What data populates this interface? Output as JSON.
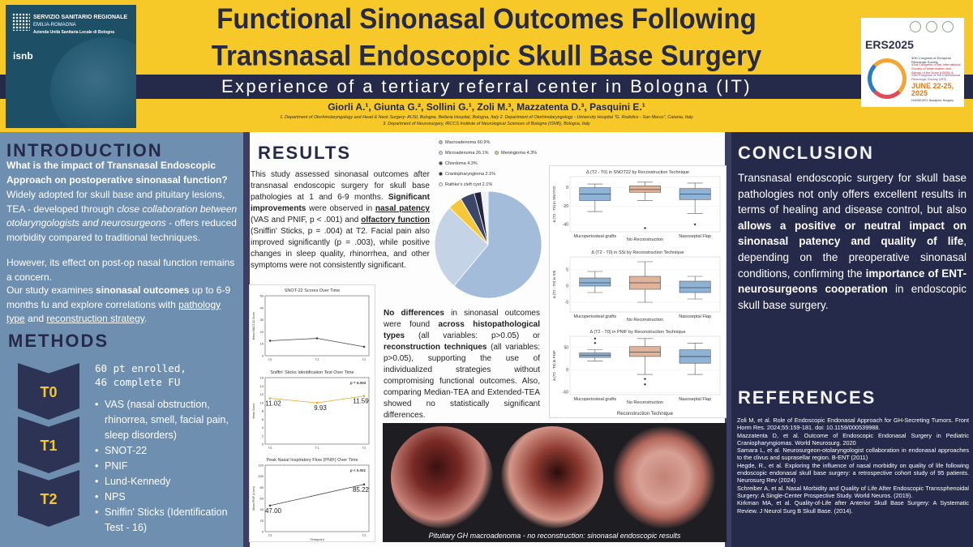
{
  "header": {
    "title_line1": "Functional Sinonasal Outcomes Following",
    "title_line2": "Transnasal Endoscopic Skull Base Surgery",
    "subtitle": "Experience of a tertiary referral center in Bologna (IT)",
    "authors": "Giorli A.¹, Giunta G.², Sollini G.¹, Zoli M.³, Mazzatenta D.³, Pasquini E.¹",
    "aff1": "1. Department of Otorhinolaryngology and Head & Neck Surgery- AUSL Bologna, Bellaria Hospital, Bologna, Italy 2. Department of Otorhinolaryngology - University Hospital \"G. Rodolico - San Marco\", Catania, Italy",
    "aff2": "3. Department of Neurosurgery, IRCCS Institute of Neurological Sciences of Bologna (ISNB), Bologna, Italy",
    "logo_left": {
      "line1": "SERVIZIO SANITARIO REGIONALE",
      "line2": "EMILIA-ROMAGNA",
      "line3": "Azienda Unità Sanitaria Locale di Bologna",
      "line4": "isnb"
    },
    "logo_right": {
      "name": "ERS2025",
      "congress1": "30th Congress of European Rhinologic Society",
      "congress2": "43rd Congress of the International Society of Inflammation and Allergy of the Nose (ISIAN) &",
      "congress3": "25th Congress of the International Rhinologic Society (IRS)",
      "date": "JUNE 22-25, 2025",
      "venue": "HUNGEXPO, Budapest, Hungary"
    }
  },
  "intro": {
    "heading": "INTRODUCTION",
    "question": "What is the impact of Transnasal Endoscopic Approach on postoperative sinonasal function?",
    "p1a": "Widely adopted for skull base and pituitary lesions, TEA - developed through ",
    "p1b": "close collaboration between otolaryngologists and neurosurgeons",
    "p1c": " - offers reduced morbidity compared to traditional techniques.",
    "p2": "However, its effect on post-op nasal function remains a concern.",
    "p3a": "Our study examines ",
    "p3b": "sinonasal outcomes",
    "p3c": " up to 6-9 months fu and explore correlations with ",
    "p3d": "pathology type",
    "p3e": " and ",
    "p3f": "reconstruction strategy",
    "p3g": "."
  },
  "methods": {
    "heading": "METHODS",
    "enrolled1": "60 pt enrolled,",
    "enrolled2": "46 complete FU",
    "timepoints": [
      "T0",
      "T1",
      "T2"
    ],
    "items": [
      "VAS (nasal obstruction, rhinorrea, smell, facial pain, sleep disorders)",
      "SNOT-22",
      "PNIF",
      "Lund-Kennedy",
      "NPS",
      "Sniffin' Sticks (Identification Test - 16)"
    ]
  },
  "results": {
    "heading": "RESULTS",
    "t1a": "This study assessed sinonasal outcomes after transnasal endoscopic surgery for skull base pathologies at 1 and 6-9 months. ",
    "t1b": "Significant improvements",
    "t1c": " were observed in ",
    "t1d": "nasal patency",
    "t1e": " (VAS and PNIF, p < .001) and ",
    "t1f": "olfactory function",
    "t1g": " (Sniffin' Sticks, p = .004) at T2. Facial pain also improved significantly (p = .003), while positive changes in sleep quality, rhinorrhea, and other symptoms were not consistently significant.",
    "t2a": "No differences",
    "t2b": " in sinonasal outcomes were found ",
    "t2c": "across histopathological types",
    "t2d": " (all variables: p>0.05) or ",
    "t2e": "reconstruction techniques",
    "t2f": " (all variables: p>0.05), supporting the use of individualized strategies without compromising functional outcomes. Also, comparing Median-TEA and Extended-TEA showed no statistically significant differences.",
    "endo_caption": "Pituitary GH macroadenoma - no reconstruction: sinonasal endoscopic results"
  },
  "chart_data": [
    {
      "type": "pie",
      "categories": [
        "Macroadenoma",
        "Microadenoma",
        "Meningioma",
        "Chordoma",
        "Craniopharyngioma",
        "Rathke's cleft cyst"
      ],
      "values": [
        60.9,
        26.1,
        4.3,
        4.3,
        2.1,
        2.1
      ],
      "legend": [
        "Macroadenoma 60.9%",
        "Microadenoma 26.1%",
        "Meningioma 4.3%",
        "Chordoma 4.3%",
        "Craniopharyngioma 2.1%",
        "Rathke's cleft cyst 2.1%"
      ],
      "colors": [
        "#a3bcd9",
        "#c4d4e6",
        "#f5c83a",
        "#3c4668",
        "#22253d",
        "#eef1f6"
      ]
    },
    {
      "type": "line",
      "title": "SNOT-22 Scores Over Time",
      "ylabel": "Mean SNOT-22 Score",
      "x": [
        "T0",
        "T1",
        "T2"
      ],
      "values": [
        12.5,
        14.5,
        7.5
      ],
      "ylim": [
        0,
        50
      ],
      "yticks": [
        "0",
        "10",
        "20",
        "30",
        "40",
        "50"
      ]
    },
    {
      "type": "line",
      "title": "Sniffin' Sticks Identification Test Over Time",
      "ylabel": "Mean Score",
      "x": [
        "T0",
        "T1",
        "T2"
      ],
      "values": [
        11.02,
        9.93,
        11.59
      ],
      "labels": [
        "11.02",
        "9.93",
        "11.59"
      ],
      "annotation": "p = 0.004",
      "ylim": [
        0,
        16
      ],
      "yticks": [
        "0",
        "2",
        "4",
        "6",
        "8",
        "10",
        "12",
        "14",
        "16"
      ]
    },
    {
      "type": "line",
      "title": "Peak Nasal Inspiratory Flow (PNIF) Over Time",
      "ylabel": "Mean PNIF (L/min)",
      "xlabel": "Timepoint",
      "x": [
        "T0",
        "T2"
      ],
      "values": [
        47.0,
        85.22
      ],
      "labels": [
        "47.00",
        "85.22"
      ],
      "annotation": "p < 0.001",
      "ylim": [
        0,
        120
      ],
      "yticks": [
        "0",
        "20",
        "40",
        "60",
        "80",
        "100",
        "120"
      ]
    },
    {
      "type": "box",
      "title": "Δ (T2 - T0) in SNOT22 by Reconstruction Technique",
      "ylabel": "Δ (T2 - T0) in SNOT22",
      "categories": [
        "Mucoperiosteal grafts",
        "No Reconstruction",
        "Nasoseptal Flap"
      ],
      "ylim": [
        -48,
        12
      ],
      "yticks": [
        "-40",
        "-20",
        "0"
      ],
      "boxes": [
        {
          "min": -26,
          "q1": -14,
          "median": -7,
          "q3": 0,
          "max": 4,
          "outliers": []
        },
        {
          "min": -14,
          "q1": -5,
          "median": -2,
          "q3": 2,
          "max": 6,
          "outliers": [
            -44
          ]
        },
        {
          "min": -28,
          "q1": -13,
          "median": -7,
          "q3": -1,
          "max": 5,
          "outliers": [
            -40
          ]
        }
      ]
    },
    {
      "type": "box",
      "title": "Δ (T2 - T0) in SSi by Reconstruction Technique",
      "ylabel": "Δ (T2 - T0) in SSi",
      "categories": [
        "Mucoperiosteal grafts",
        "No Reconstruction",
        "Nasoseptal Flap"
      ],
      "ylim": [
        -8,
        9
      ],
      "yticks": [
        "-5",
        "0",
        "5"
      ],
      "boxes": [
        {
          "min": -2,
          "q1": 0,
          "median": 1,
          "q3": 2.5,
          "max": 4.5,
          "outliers": []
        },
        {
          "min": -5,
          "q1": -1,
          "median": 1,
          "q3": 3,
          "max": 7.5,
          "outliers": []
        },
        {
          "min": -4,
          "q1": -2,
          "median": -0.5,
          "q3": 1.5,
          "max": 3,
          "outliers": []
        }
      ]
    },
    {
      "type": "box",
      "title": "Δ (T2 - T0) in PNIF by Reconstruction Technique",
      "ylabel": "Δ (T2 - T0) in PNIF",
      "xlabel": "Reconstruction Technique",
      "categories": [
        "Mucoperiosteal grafts",
        "No Reconstruction",
        "Nasoseptal Flap"
      ],
      "ylim": [
        -55,
        75
      ],
      "yticks": [
        "-50",
        "0",
        "50"
      ],
      "boxes": [
        {
          "min": 20,
          "q1": 28,
          "median": 33,
          "q3": 38,
          "max": 45,
          "outliers": [
            60,
            70
          ]
        },
        {
          "min": -10,
          "q1": 30,
          "median": 40,
          "q3": 52,
          "max": 70,
          "outliers": [
            -20,
            -32
          ]
        },
        {
          "min": -10,
          "q1": 15,
          "median": 30,
          "q3": 45,
          "max": 60,
          "outliers": []
        }
      ]
    }
  ],
  "conclusion": {
    "heading": "CONCLUSION",
    "c1": "Transnasal endoscopic surgery for skull base pathologies not only offers excellent results in terms of healing and disease control, but also ",
    "c2": "allows a positive or neutral impact on sinonasal patency and quality of life",
    "c3": ", depending on the preoperative sinonasal conditions, confirming the ",
    "c4": "importance of ENT-neurosurgeons cooperation",
    "c5": " in endoscopic skull base surgery."
  },
  "references": {
    "heading": "REFERENCES",
    "items": [
      "Zoli M, et al. Role of Endoscopic Endonasal Approach for GH-Secreting Tumors. Front Horm Res. 2024;55:159-181. doi: 10.1159/000539988.",
      "Mazzatenta D, et al. Outcome of Endoscopic Endonasal Surgery in Pediatric Craniopharyngiomas. World Neurosurg. 2020",
      "Samara L, et al. Neurosurgeon-otolaryngologist collaboration in endonasal approaches to the clivus and suprasellar region. B-ENT (2011)",
      "Hegde, R., et al. Exploring the influence of nasal morbidity on quality of life following endoscopic endonasal skull base surgery: a retrospective cohort study of 95 patients. Neurosurg Rev (2024)",
      "Schreiber A, et al. Nasal Morbidity and Quality of Life After Endoscopic Transsphenoidal Surgery: A Single-Center Prospective Study. World Neuros. (2019).",
      "Kirkman MA, et al. Quality-of-Life after Anterior Skull Base Surgery: A Systematic Review. J Neurol Surg B Skull Base. (2014)."
    ]
  },
  "colors": {
    "yellow": "#f7c928",
    "navy": "#262a4a",
    "steel": "#6f8fb0",
    "box_blue": "#8fb3d6",
    "box_peach": "#e0b49a"
  }
}
